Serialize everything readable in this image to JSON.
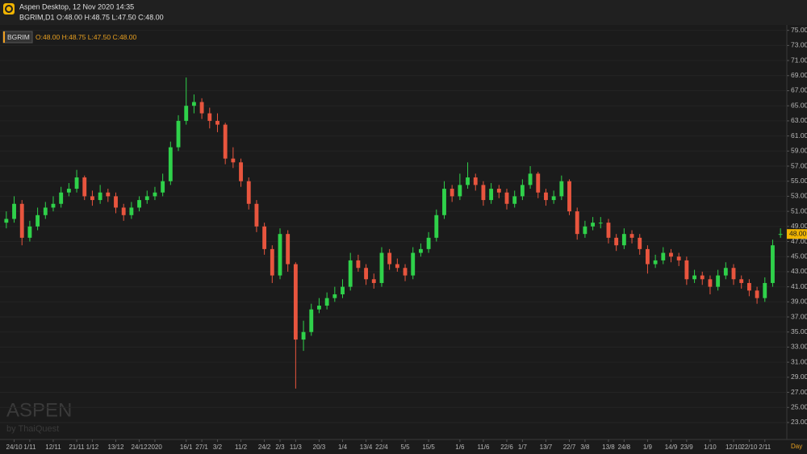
{
  "chart_data": {
    "type": "candlestick",
    "title": "Aspen Desktop, 12 Nov 2020 14:35",
    "subtitle": "BGRIM,D1 O:48.00 H:48.75 L:47.50 C:48.00",
    "legend": {
      "symbol": "BGRIM",
      "text": "O:48.00 H:48.75 L:47.50 C:48.00"
    },
    "watermark": {
      "brand": "ASPEN",
      "by": "by ThaiQuest"
    },
    "x_unit": "Day",
    "up_color": "#2fd14a",
    "down_color": "#e8553e",
    "grid": true,
    "price_marker": {
      "value": 48,
      "label": "48.00"
    },
    "ylim": [
      20.75,
      75.5
    ],
    "yticks": [
      {
        "value": 23,
        "label": "23.00"
      },
      {
        "value": 25,
        "label": "25.00"
      },
      {
        "value": 27,
        "label": "27.00"
      },
      {
        "value": 29,
        "label": "29.00"
      },
      {
        "value": 31,
        "label": "31.00"
      },
      {
        "value": 33,
        "label": "33.00"
      },
      {
        "value": 35,
        "label": "35.00"
      },
      {
        "value": 37,
        "label": "37.00"
      },
      {
        "value": 39,
        "label": "39.00"
      },
      {
        "value": 41,
        "label": "41.00"
      },
      {
        "value": 43,
        "label": "43.00"
      },
      {
        "value": 45,
        "label": "45.00"
      },
      {
        "value": 47,
        "label": "47.00"
      },
      {
        "value": 49,
        "label": "49.00"
      },
      {
        "value": 51,
        "label": "51.00"
      },
      {
        "value": 53,
        "label": "53.00"
      },
      {
        "value": 55,
        "label": "55.00"
      },
      {
        "value": 57,
        "label": "57.00"
      },
      {
        "value": 59,
        "label": "59.00"
      },
      {
        "value": 61,
        "label": "61.00"
      },
      {
        "value": 63,
        "label": "63.00"
      },
      {
        "value": 65,
        "label": "65.00"
      },
      {
        "value": 67,
        "label": "67.00"
      },
      {
        "value": 69,
        "label": "69.00"
      },
      {
        "value": 71,
        "label": "71.00"
      },
      {
        "value": 73,
        "label": "73.00"
      },
      {
        "value": 75,
        "label": "75.00"
      }
    ],
    "categories": [
      null,
      "24/10",
      null,
      "1/11",
      null,
      null,
      "12/11",
      null,
      null,
      "21/11",
      null,
      "1/12",
      null,
      null,
      "13/12",
      null,
      null,
      "24/12",
      null,
      "2020",
      null,
      null,
      null,
      "16/1",
      null,
      "27/1",
      null,
      "3/2",
      null,
      null,
      "11/2",
      null,
      null,
      "24/2",
      null,
      "2/3",
      null,
      "11/3",
      null,
      null,
      "20/3",
      null,
      null,
      "1/4",
      null,
      null,
      "13/4",
      null,
      "22/4",
      null,
      null,
      "5/5",
      null,
      null,
      "15/5",
      null,
      null,
      null,
      "1/6",
      null,
      null,
      "11/6",
      null,
      null,
      "22/6",
      null,
      "1/7",
      null,
      null,
      "13/7",
      null,
      null,
      "22/7",
      null,
      "3/8",
      null,
      null,
      "13/8",
      null,
      "24/8",
      null,
      null,
      "1/9",
      null,
      null,
      "14/9",
      null,
      "23/9",
      null,
      null,
      "1/10",
      null,
      null,
      "12/10",
      null,
      "22/10",
      null,
      "2/11",
      null,
      null
    ],
    "open": [
      49.5,
      50,
      52,
      47.5,
      49,
      50.5,
      51.5,
      52,
      53.5,
      54,
      55.5,
      53,
      52.5,
      53.5,
      53,
      51.5,
      50.5,
      51.5,
      52.5,
      53,
      53.5,
      55,
      59.5,
      63,
      65,
      65.5,
      64,
      63,
      62.5,
      58,
      57.5,
      55,
      52,
      49,
      46,
      42.5,
      48,
      44,
      34,
      35,
      38,
      38.5,
      39.5,
      40,
      41,
      44.5,
      43.5,
      42,
      41.5,
      45.5,
      44,
      43.5,
      42.5,
      45.5,
      46,
      47.5,
      50.5,
      54,
      53,
      54.5,
      55.5,
      54.5,
      52.5,
      54,
      53.5,
      52,
      53,
      54.5,
      56,
      53.5,
      52.5,
      53,
      55,
      51,
      48,
      49,
      49.5,
      49.5,
      47.5,
      46.5,
      48,
      47.5,
      46,
      44,
      44.5,
      45.5,
      45,
      44.5,
      42,
      42.5,
      42,
      41,
      42.5,
      43.5,
      42,
      41.5,
      40.5,
      39.5,
      41.5,
      48
    ],
    "high": [
      51,
      53,
      52.5,
      49.75,
      51.5,
      52.25,
      53,
      54.25,
      54.75,
      56.5,
      55.75,
      53.75,
      54.5,
      54,
      53.5,
      52,
      52.25,
      53,
      53.75,
      54.25,
      56,
      60.25,
      63.75,
      68.75,
      66.5,
      66,
      64.75,
      64,
      62.75,
      59.5,
      58,
      55.5,
      52.5,
      49.5,
      46.5,
      48.75,
      48.5,
      44.25,
      36.5,
      38.75,
      39.5,
      40.25,
      41,
      42,
      45.5,
      45.25,
      44,
      42.75,
      46.25,
      46,
      44.75,
      44,
      46.25,
      46.75,
      48.25,
      51.25,
      55,
      54.5,
      56,
      57.5,
      56,
      55,
      54.75,
      54.5,
      54,
      53.75,
      55.25,
      57,
      56.25,
      54,
      53.75,
      55.75,
      55.25,
      51.5,
      49.75,
      50.25,
      50.25,
      50,
      48,
      48.75,
      48.5,
      48,
      46.5,
      45.25,
      46.25,
      46,
      45.5,
      45,
      43.25,
      43,
      42.5,
      43.25,
      44.25,
      44,
      42.5,
      42,
      41,
      42.25,
      47.25,
      48.75
    ],
    "low": [
      48.75,
      49.5,
      46.5,
      47,
      48.5,
      50,
      51,
      51.5,
      53,
      53.5,
      52.5,
      51.75,
      52,
      52.25,
      50.75,
      49.75,
      50,
      51,
      52,
      52.5,
      53,
      54.5,
      59,
      62.5,
      64,
      63.25,
      62,
      61.5,
      57.25,
      56.75,
      54.25,
      51.25,
      48.25,
      45.25,
      41.5,
      42,
      43,
      27.5,
      32.5,
      34.5,
      37.5,
      38,
      39,
      39.5,
      40.5,
      43,
      41.25,
      40.75,
      41,
      43.25,
      43,
      41.75,
      42,
      45,
      45.5,
      47,
      50,
      52.25,
      52.5,
      54,
      53.75,
      51.75,
      52,
      52.75,
      51.25,
      51.5,
      52.5,
      54,
      52.75,
      51.75,
      52,
      52.5,
      50.5,
      47.25,
      47.5,
      48.5,
      48.75,
      46.75,
      45.75,
      46,
      46.75,
      45.25,
      42.75,
      43.5,
      44,
      44.25,
      43.75,
      41.25,
      41.5,
      41.25,
      40,
      40.5,
      42,
      41.25,
      40.75,
      39.75,
      38.75,
      39,
      41,
      47.5
    ],
    "close": [
      50,
      52,
      47.5,
      49,
      50.5,
      51.5,
      52,
      53.5,
      54,
      55.5,
      53,
      52.5,
      53.5,
      53,
      51.5,
      50.5,
      51.5,
      52.5,
      53,
      53.5,
      55,
      59.5,
      63,
      65,
      65.5,
      64,
      63,
      62.5,
      58,
      57.5,
      55,
      52,
      49,
      46,
      42.5,
      48,
      44,
      34,
      35,
      38,
      38.5,
      39.5,
      40,
      41,
      44.5,
      43.5,
      42,
      41.5,
      45.5,
      44,
      43.5,
      42.5,
      45.5,
      46,
      47.5,
      50.5,
      54,
      53,
      54.5,
      55.5,
      54.5,
      52.5,
      54,
      53.5,
      52,
      53,
      54.5,
      56,
      53.5,
      52.5,
      53,
      55,
      51,
      48,
      49,
      49.5,
      49.5,
      47.5,
      46.5,
      48,
      47.5,
      46,
      44,
      44.5,
      45.5,
      45,
      44.5,
      42,
      42.5,
      42,
      41,
      42.5,
      43.5,
      42,
      41.5,
      40.5,
      39.5,
      41.5,
      46.5,
      48
    ]
  }
}
